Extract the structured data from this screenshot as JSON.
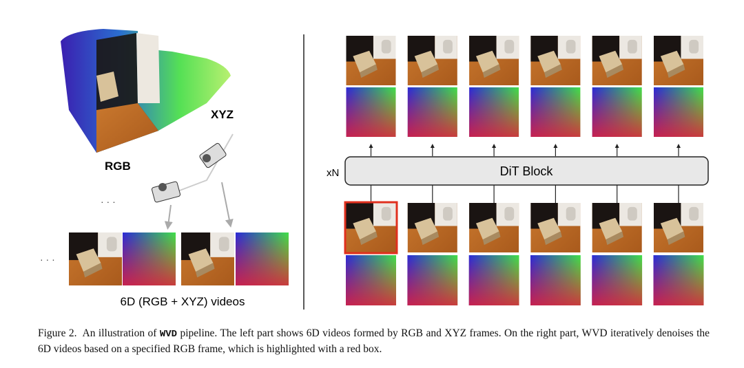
{
  "figure": {
    "left": {
      "xyz_label": "XYZ",
      "rgb_label": "RGB",
      "ellipsis_top": "· · ·",
      "ellipsis_bottom": "· · ·",
      "videos_label": "6D (RGB + XYZ) videos"
    },
    "right": {
      "repeat_label": "xN",
      "block_label": "DiT Block"
    }
  },
  "caption": {
    "label": "Figure 2.",
    "before": "An illustration of",
    "code": "WVD",
    "after": "pipeline.  The left part shows 6D videos formed by RGB and XYZ frames.  On the right part, WVD iteratively denoises the 6D videos based on a specified RGB frame, which is highlighted with a red box."
  }
}
